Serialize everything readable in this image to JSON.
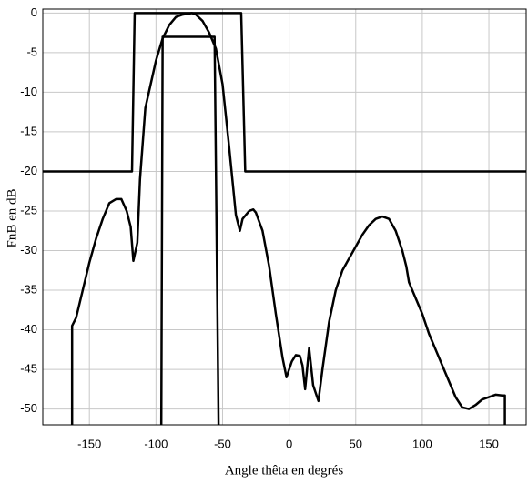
{
  "chart_data": {
    "type": "line",
    "xlabel": "Angle thêta en degrés",
    "ylabel": "FnB en dB",
    "xlim": [
      -185,
      178
    ],
    "ylim": [
      -52,
      0.5
    ],
    "xticks": [
      -150,
      -100,
      -50,
      0,
      50,
      100,
      150
    ],
    "yticks": [
      0,
      -5,
      -10,
      -15,
      -20,
      -25,
      -30,
      -35,
      -40,
      -45,
      -50
    ],
    "grid": true,
    "series": [
      {
        "color": "#000000",
        "x": [
          -185,
          -118,
          -116,
          -36,
          -33,
          178
        ],
        "values": [
          -20,
          -20,
          0,
          0,
          -20,
          -20
        ]
      },
      {
        "color": "#000000",
        "x": [
          -96,
          -95,
          -56,
          -53
        ],
        "values": [
          -52,
          -3,
          -3,
          -52
        ]
      },
      {
        "color": "#000000",
        "x": [
          -163,
          -163,
          -160,
          -155,
          -150,
          -145,
          -140,
          -135,
          -130,
          -126,
          -122,
          -119,
          -117,
          -114,
          -112,
          -108,
          -104,
          -100,
          -95,
          -90,
          -85,
          -80,
          -73,
          -70,
          -65,
          -60,
          -55,
          -50,
          -45,
          -40,
          -37,
          -35,
          -30,
          -27,
          -25,
          -20,
          -15,
          -10,
          -5,
          -2,
          2,
          5,
          8,
          10,
          12,
          15,
          18,
          22,
          25,
          30,
          35,
          40,
          45,
          50,
          55,
          60,
          65,
          70,
          75,
          80,
          85,
          88,
          90,
          95,
          100,
          105,
          110,
          115,
          120,
          125,
          130,
          135,
          140,
          145,
          150,
          155,
          160,
          162,
          162
        ],
        "values": [
          -52,
          -39.5,
          -38.5,
          -35,
          -31.5,
          -28.5,
          -26,
          -24,
          -23.5,
          -23.5,
          -25,
          -27,
          -31.3,
          -29,
          -21,
          -12,
          -9,
          -6,
          -3.2,
          -1.5,
          -0.5,
          -0.2,
          0,
          -0.2,
          -1,
          -2.5,
          -4.5,
          -9,
          -17,
          -25.5,
          -27.5,
          -26,
          -25,
          -24.8,
          -25.2,
          -27.5,
          -32,
          -38,
          -43.5,
          -46,
          -44,
          -43.2,
          -43.3,
          -44.5,
          -47.5,
          -42.3,
          -47,
          -49,
          -45,
          -39,
          -35,
          -32.5,
          -31,
          -29.5,
          -28,
          -26.8,
          -26,
          -25.7,
          -26,
          -27.5,
          -30,
          -32,
          -34,
          -36,
          -38,
          -40.5,
          -42.5,
          -44.5,
          -46.5,
          -48.5,
          -49.8,
          -50,
          -49.5,
          -48.8,
          -48.5,
          -48.2,
          -48.3,
          -48.3,
          -52
        ]
      }
    ]
  }
}
